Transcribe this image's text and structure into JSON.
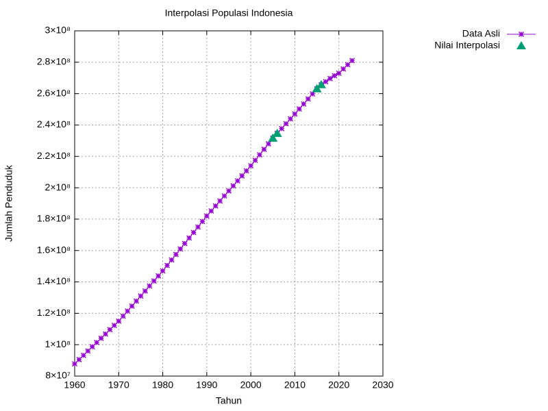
{
  "chart_data": {
    "type": "line",
    "title": "Interpolasi Populasi Indonesia",
    "x_label": "Tahun",
    "y_label": "Jumlah Penduduk",
    "grid": true,
    "legend_position": "outside-top-right",
    "xlim": [
      1960,
      2030
    ],
    "xticks": [
      1960,
      1970,
      1980,
      1990,
      2000,
      2010,
      2020,
      2030
    ],
    "ylim": [
      80000000,
      300000000
    ],
    "yticks": [
      {
        "value": 80000000,
        "label": "8×10⁷"
      },
      {
        "value": 100000000,
        "label": "1×10⁸"
      },
      {
        "value": 120000000,
        "label": "1.2×10⁸"
      },
      {
        "value": 140000000,
        "label": "1.4×10⁸"
      },
      {
        "value": 160000000,
        "label": "1.6×10⁸"
      },
      {
        "value": 180000000,
        "label": "1.8×10⁸"
      },
      {
        "value": 200000000,
        "label": "2×10⁸"
      },
      {
        "value": 220000000,
        "label": "2.2×10⁸"
      },
      {
        "value": 240000000,
        "label": "2.4×10⁸"
      },
      {
        "value": 260000000,
        "label": "2.6×10⁸"
      },
      {
        "value": 280000000,
        "label": "2.8×10⁸"
      },
      {
        "value": 300000000,
        "label": "3×10⁸"
      }
    ],
    "series": [
      {
        "name": "Data Asli",
        "color": "#9400d3",
        "style": "linespoints",
        "marker": "star",
        "x": [
          1960,
          1961,
          1962,
          1963,
          1964,
          1965,
          1966,
          1967,
          1968,
          1969,
          1970,
          1971,
          1972,
          1973,
          1974,
          1975,
          1976,
          1977,
          1978,
          1979,
          1980,
          1981,
          1982,
          1983,
          1984,
          1985,
          1986,
          1987,
          1988,
          1989,
          1990,
          1991,
          1992,
          1993,
          1994,
          1995,
          1996,
          1997,
          1998,
          1999,
          2000,
          2001,
          2002,
          2003,
          2004,
          2005,
          2006,
          2007,
          2008,
          2009,
          2010,
          2011,
          2012,
          2013,
          2014,
          2015,
          2016,
          2017,
          2018,
          2019,
          2020,
          2021,
          2022,
          2023
        ],
        "values": [
          87800000,
          90500000,
          93200000,
          96000000,
          98700000,
          101400000,
          104100000,
          106800000,
          109600000,
          112300000,
          115000000,
          118200000,
          121400000,
          124600000,
          127800000,
          131000000,
          134200000,
          137400000,
          140600000,
          143800000,
          147000000,
          150500000,
          154000000,
          157500000,
          161000000,
          164500000,
          168000000,
          171500000,
          175000000,
          178500000,
          182000000,
          185200000,
          188400000,
          191600000,
          194800000,
          198000000,
          201200000,
          204400000,
          207600000,
          210800000,
          214000000,
          217500000,
          221000000,
          224500000,
          228000000,
          231500000,
          234600000,
          237700000,
          240800000,
          243900000,
          247000000,
          250200000,
          253400000,
          256600000,
          259800000,
          263000000,
          265600000,
          267600000,
          269600000,
          271400000,
          273000000,
          275700000,
          278400000,
          281000000
        ]
      },
      {
        "name": "Nilai Interpolasi",
        "color": "#009e73",
        "style": "points",
        "marker": "triangle",
        "x": [
          2005,
          2006,
          2015,
          2016
        ],
        "values": [
          231500000,
          234600000,
          263000000,
          265600000
        ]
      }
    ]
  }
}
